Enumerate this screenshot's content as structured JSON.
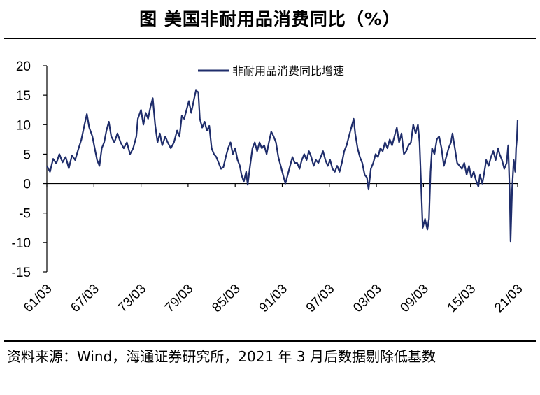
{
  "title": "图  美国非耐用品消费同比（%）",
  "source_note": "资料来源：Wind，海通证券研究所，2021 年 3 月后数据剔除低基数",
  "chart_data": {
    "type": "line",
    "title": "图  美国非耐用品消费同比（%）",
    "xlabel": "",
    "ylabel": "",
    "ylim": [
      -15,
      20
    ],
    "yticks": [
      -15,
      -10,
      -5,
      0,
      5,
      10,
      15,
      20
    ],
    "ytick_labels": [
      "-15",
      "-10",
      "-5",
      "0",
      "5",
      "10",
      "15",
      "20"
    ],
    "xlim": [
      "1961-03",
      "2021-03"
    ],
    "x_tick_labels": [
      "61/03",
      "67/03",
      "73/03",
      "79/03",
      "85/03",
      "91/03",
      "97/03",
      "03/03",
      "09/03",
      "15/03",
      "21/03"
    ],
    "x_tick_years": [
      1961,
      1967,
      1973,
      1979,
      1985,
      1991,
      1997,
      2003,
      2009,
      2015,
      2021
    ],
    "grid": false,
    "legend": "top-center",
    "line_color": "#1f2d6b",
    "series": [
      {
        "name": "非耐用品消费同比增速",
        "points": [
          [
            1961.2,
            3.0
          ],
          [
            1961.6,
            2.0
          ],
          [
            1962.0,
            4.2
          ],
          [
            1962.4,
            3.4
          ],
          [
            1962.8,
            5.0
          ],
          [
            1963.2,
            3.6
          ],
          [
            1963.6,
            4.5
          ],
          [
            1964.0,
            2.6
          ],
          [
            1964.4,
            4.8
          ],
          [
            1964.8,
            4.0
          ],
          [
            1965.2,
            5.8
          ],
          [
            1965.6,
            7.5
          ],
          [
            1966.0,
            10.0
          ],
          [
            1966.3,
            11.8
          ],
          [
            1966.6,
            9.5
          ],
          [
            1967.0,
            8.0
          ],
          [
            1967.3,
            6.0
          ],
          [
            1967.6,
            4.0
          ],
          [
            1967.9,
            3.0
          ],
          [
            1968.2,
            6.0
          ],
          [
            1968.5,
            7.0
          ],
          [
            1968.8,
            9.0
          ],
          [
            1969.1,
            10.5
          ],
          [
            1969.4,
            8.0
          ],
          [
            1969.8,
            7.0
          ],
          [
            1970.2,
            8.5
          ],
          [
            1970.6,
            7.0
          ],
          [
            1971.0,
            6.0
          ],
          [
            1971.4,
            7.0
          ],
          [
            1971.8,
            5.0
          ],
          [
            1972.2,
            6.0
          ],
          [
            1972.6,
            8.0
          ],
          [
            1972.8,
            11.0
          ],
          [
            1973.2,
            12.5
          ],
          [
            1973.5,
            10.0
          ],
          [
            1973.8,
            12.0
          ],
          [
            1974.1,
            11.0
          ],
          [
            1974.4,
            13.0
          ],
          [
            1974.7,
            14.5
          ],
          [
            1975.0,
            10.0
          ],
          [
            1975.3,
            7.0
          ],
          [
            1975.6,
            8.5
          ],
          [
            1975.9,
            6.5
          ],
          [
            1976.3,
            8.0
          ],
          [
            1976.6,
            7.0
          ],
          [
            1977.0,
            6.0
          ],
          [
            1977.4,
            7.0
          ],
          [
            1977.8,
            9.0
          ],
          [
            1978.1,
            8.0
          ],
          [
            1978.4,
            11.5
          ],
          [
            1978.7,
            11.0
          ],
          [
            1979.0,
            12.5
          ],
          [
            1979.3,
            14.0
          ],
          [
            1979.6,
            12.0
          ],
          [
            1979.9,
            14.0
          ],
          [
            1980.2,
            15.8
          ],
          [
            1980.5,
            15.5
          ],
          [
            1980.7,
            11.0
          ],
          [
            1981.0,
            9.5
          ],
          [
            1981.3,
            10.5
          ],
          [
            1981.6,
            9.0
          ],
          [
            1981.9,
            9.8
          ],
          [
            1982.2,
            6.0
          ],
          [
            1982.5,
            5.0
          ],
          [
            1982.8,
            4.5
          ],
          [
            1983.1,
            3.5
          ],
          [
            1983.4,
            2.5
          ],
          [
            1983.7,
            2.8
          ],
          [
            1984.0,
            4.5
          ],
          [
            1984.3,
            6.0
          ],
          [
            1984.6,
            7.0
          ],
          [
            1984.9,
            5.0
          ],
          [
            1985.2,
            6.0
          ],
          [
            1985.5,
            4.0
          ],
          [
            1985.8,
            3.0
          ],
          [
            1986.0,
            1.5
          ],
          [
            1986.3,
            0.3
          ],
          [
            1986.6,
            2.0
          ],
          [
            1986.8,
            -0.2
          ],
          [
            1987.1,
            3.0
          ],
          [
            1987.4,
            6.0
          ],
          [
            1987.7,
            7.0
          ],
          [
            1988.0,
            5.5
          ],
          [
            1988.3,
            7.0
          ],
          [
            1988.6,
            6.0
          ],
          [
            1988.9,
            6.5
          ],
          [
            1989.2,
            5.0
          ],
          [
            1989.5,
            7.0
          ],
          [
            1989.8,
            8.8
          ],
          [
            1990.1,
            8.0
          ],
          [
            1990.4,
            7.0
          ],
          [
            1990.7,
            4.5
          ],
          [
            1991.0,
            3.0
          ],
          [
            1991.3,
            1.5
          ],
          [
            1991.6,
            0.0
          ],
          [
            1991.9,
            1.5
          ],
          [
            1992.2,
            3.0
          ],
          [
            1992.5,
            4.5
          ],
          [
            1992.8,
            3.5
          ],
          [
            1993.1,
            3.5
          ],
          [
            1993.4,
            2.5
          ],
          [
            1993.7,
            4.0
          ],
          [
            1994.0,
            5.0
          ],
          [
            1994.3,
            4.0
          ],
          [
            1994.6,
            5.5
          ],
          [
            1994.9,
            4.5
          ],
          [
            1995.2,
            3.0
          ],
          [
            1995.5,
            4.0
          ],
          [
            1995.8,
            3.5
          ],
          [
            1996.1,
            4.5
          ],
          [
            1996.4,
            5.5
          ],
          [
            1996.7,
            4.0
          ],
          [
            1997.0,
            3.0
          ],
          [
            1997.3,
            4.0
          ],
          [
            1997.6,
            2.5
          ],
          [
            1997.9,
            2.0
          ],
          [
            1998.2,
            3.0
          ],
          [
            1998.5,
            2.0
          ],
          [
            1998.8,
            3.5
          ],
          [
            1999.1,
            5.5
          ],
          [
            1999.4,
            6.5
          ],
          [
            1999.7,
            8.0
          ],
          [
            2000.0,
            9.5
          ],
          [
            2000.3,
            11.0
          ],
          [
            2000.5,
            8.5
          ],
          [
            2000.8,
            6.0
          ],
          [
            2001.1,
            4.5
          ],
          [
            2001.4,
            3.5
          ],
          [
            2001.7,
            1.5
          ],
          [
            2002.0,
            1.0
          ],
          [
            2002.2,
            -1.0
          ],
          [
            2002.5,
            2.5
          ],
          [
            2002.8,
            3.5
          ],
          [
            2003.1,
            5.0
          ],
          [
            2003.4,
            4.5
          ],
          [
            2003.7,
            6.0
          ],
          [
            2004.0,
            5.5
          ],
          [
            2004.3,
            7.0
          ],
          [
            2004.6,
            6.0
          ],
          [
            2004.9,
            7.5
          ],
          [
            2005.2,
            6.5
          ],
          [
            2005.5,
            8.0
          ],
          [
            2005.8,
            9.5
          ],
          [
            2006.1,
            7.0
          ],
          [
            2006.4,
            8.5
          ],
          [
            2006.7,
            5.0
          ],
          [
            2007.0,
            5.5
          ],
          [
            2007.3,
            6.5
          ],
          [
            2007.6,
            7.0
          ],
          [
            2007.9,
            10.0
          ],
          [
            2008.2,
            8.5
          ],
          [
            2008.5,
            10.0
          ],
          [
            2008.7,
            7.0
          ],
          [
            2008.9,
            0.0
          ],
          [
            2009.1,
            -7.5
          ],
          [
            2009.4,
            -6.0
          ],
          [
            2009.7,
            -7.8
          ],
          [
            2009.9,
            -6.0
          ],
          [
            2010.1,
            2.0
          ],
          [
            2010.3,
            6.0
          ],
          [
            2010.6,
            5.0
          ],
          [
            2010.9,
            7.5
          ],
          [
            2011.2,
            8.0
          ],
          [
            2011.5,
            6.0
          ],
          [
            2011.8,
            3.0
          ],
          [
            2012.1,
            4.5
          ],
          [
            2012.4,
            6.0
          ],
          [
            2012.7,
            7.0
          ],
          [
            2012.9,
            8.5
          ],
          [
            2013.2,
            6.0
          ],
          [
            2013.5,
            3.5
          ],
          [
            2013.8,
            3.0
          ],
          [
            2014.1,
            2.5
          ],
          [
            2014.4,
            3.5
          ],
          [
            2014.7,
            1.5
          ],
          [
            2015.0,
            3.0
          ],
          [
            2015.3,
            1.0
          ],
          [
            2015.6,
            2.0
          ],
          [
            2015.9,
            0.5
          ],
          [
            2016.2,
            -0.5
          ],
          [
            2016.4,
            1.5
          ],
          [
            2016.7,
            0.0
          ],
          [
            2016.9,
            1.5
          ],
          [
            2017.2,
            4.0
          ],
          [
            2017.5,
            3.0
          ],
          [
            2017.8,
            4.5
          ],
          [
            2018.1,
            5.5
          ],
          [
            2018.4,
            4.0
          ],
          [
            2018.7,
            6.0
          ],
          [
            2018.9,
            5.0
          ],
          [
            2019.2,
            4.0
          ],
          [
            2019.5,
            2.5
          ],
          [
            2019.8,
            3.5
          ],
          [
            2020.0,
            6.5
          ],
          [
            2020.2,
            -2.0
          ],
          [
            2020.3,
            -9.8
          ],
          [
            2020.5,
            -1.0
          ],
          [
            2020.7,
            4.0
          ],
          [
            2020.9,
            2.0
          ],
          [
            2021.0,
            6.0
          ],
          [
            2021.1,
            7.5
          ],
          [
            2021.2,
            10.8
          ]
        ]
      }
    ]
  }
}
